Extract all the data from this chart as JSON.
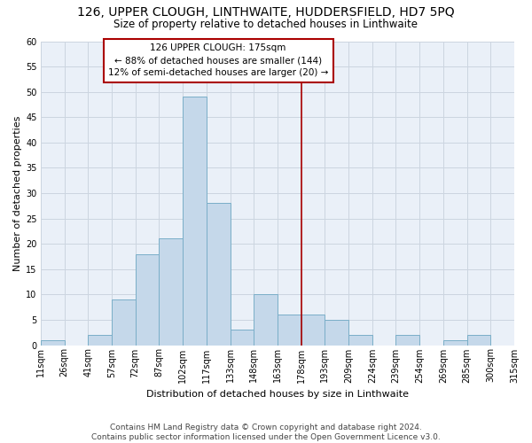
{
  "title": "126, UPPER CLOUGH, LINTHWAITE, HUDDERSFIELD, HD7 5PQ",
  "subtitle": "Size of property relative to detached houses in Linthwaite",
  "xlabel": "Distribution of detached houses by size in Linthwaite",
  "ylabel": "Number of detached properties",
  "tick_labels": [
    "11sqm",
    "26sqm",
    "41sqm",
    "57sqm",
    "72sqm",
    "87sqm",
    "102sqm",
    "117sqm",
    "133sqm",
    "148sqm",
    "163sqm",
    "178sqm",
    "193sqm",
    "209sqm",
    "224sqm",
    "239sqm",
    "254sqm",
    "269sqm",
    "285sqm",
    "300sqm",
    "315sqm"
  ],
  "counts": [
    1,
    0,
    2,
    9,
    18,
    21,
    49,
    28,
    3,
    10,
    6,
    6,
    5,
    2,
    0,
    2,
    0,
    1,
    2,
    0
  ],
  "bar_color": "#c5d8ea",
  "bar_edge_color": "#7aaec8",
  "grid_color": "#ccd5e0",
  "bg_color": "#eaf0f8",
  "vline_index": 11,
  "vline_color": "#aa0000",
  "annotation_line1": "126 UPPER CLOUGH: 175sqm",
  "annotation_line2": "← 88% of detached houses are smaller (144)",
  "annotation_line3": "12% of semi-detached houses are larger (20) →",
  "annotation_box_color": "#aa0000",
  "ylim": [
    0,
    60
  ],
  "yticks": [
    0,
    5,
    10,
    15,
    20,
    25,
    30,
    35,
    40,
    45,
    50,
    55,
    60
  ],
  "footer_line1": "Contains HM Land Registry data © Crown copyright and database right 2024.",
  "footer_line2": "Contains public sector information licensed under the Open Government Licence v3.0.",
  "title_fontsize": 10,
  "subtitle_fontsize": 8.5,
  "axis_label_fontsize": 8,
  "tick_fontsize": 7,
  "annotation_fontsize": 7.5,
  "footer_fontsize": 6.5
}
